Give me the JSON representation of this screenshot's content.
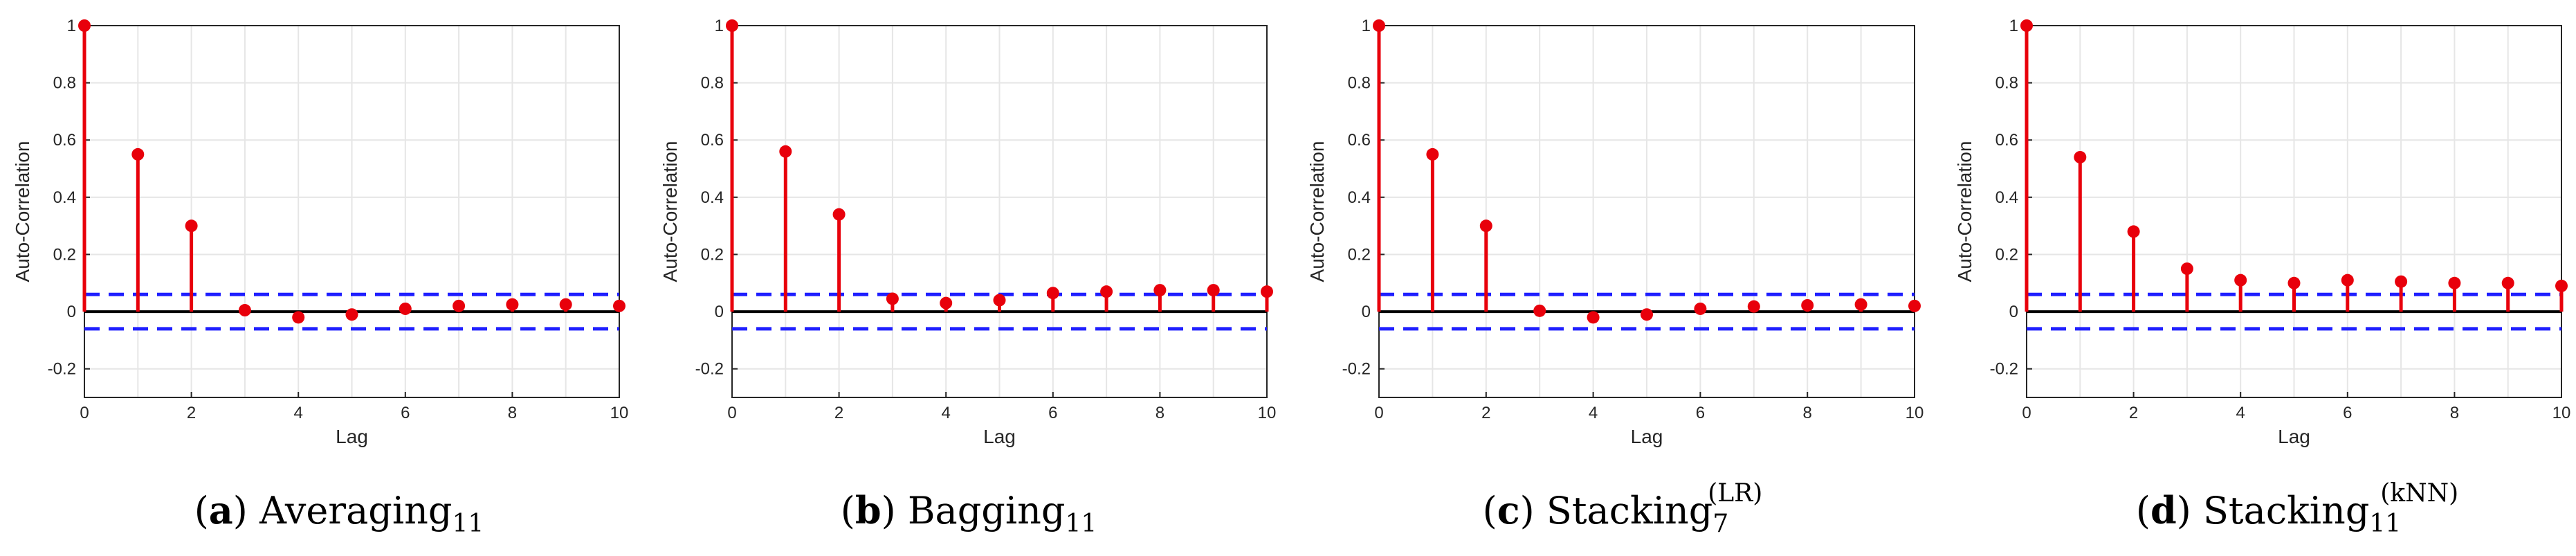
{
  "colors": {
    "stem": "#e8000b",
    "bound": "#1f1fff",
    "zeroline": "#000000",
    "grid": "#e6e6e6",
    "axis": "#262626"
  },
  "chart_data": [
    {
      "type": "stem",
      "title": "",
      "xlabel": "Lag",
      "ylabel": "Auto-Correlation",
      "xlim": [
        0,
        10
      ],
      "ylim": [
        -0.3,
        1
      ],
      "xticks": [
        "0",
        "2",
        "4",
        "6",
        "8",
        "10"
      ],
      "yticks": [
        "-0.2",
        "0",
        "0.2",
        "0.4",
        "0.6",
        "0.8",
        "1"
      ],
      "grid": true,
      "confidence_bounds": [
        0.06,
        -0.06
      ],
      "x": [
        0,
        1,
        2,
        3,
        4,
        5,
        6,
        7,
        8,
        9,
        10
      ],
      "values": [
        1.0,
        0.55,
        0.3,
        0.005,
        -0.02,
        -0.01,
        0.01,
        0.02,
        0.025,
        0.025,
        0.02
      ],
      "caption": {
        "label": "a",
        "name": "Averaging",
        "sub": "11",
        "sup": ""
      }
    },
    {
      "type": "stem",
      "title": "",
      "xlabel": "Lag",
      "ylabel": "Auto-Correlation",
      "xlim": [
        0,
        10
      ],
      "ylim": [
        -0.3,
        1
      ],
      "xticks": [
        "0",
        "2",
        "4",
        "6",
        "8",
        "10"
      ],
      "yticks": [
        "-0.2",
        "0",
        "0.2",
        "0.4",
        "0.6",
        "0.8",
        "1"
      ],
      "grid": true,
      "confidence_bounds": [
        0.06,
        -0.06
      ],
      "x": [
        0,
        1,
        2,
        3,
        4,
        5,
        6,
        7,
        8,
        9,
        10
      ],
      "values": [
        1.0,
        0.56,
        0.34,
        0.045,
        0.03,
        0.04,
        0.065,
        0.07,
        0.075,
        0.075,
        0.07
      ],
      "caption": {
        "label": "b",
        "name": "Bagging",
        "sub": "11",
        "sup": ""
      }
    },
    {
      "type": "stem",
      "title": "",
      "xlabel": "Lag",
      "ylabel": "Auto-Correlation",
      "xlim": [
        0,
        10
      ],
      "ylim": [
        -0.3,
        1
      ],
      "xticks": [
        "0",
        "2",
        "4",
        "6",
        "8",
        "10"
      ],
      "yticks": [
        "-0.2",
        "0",
        "0.2",
        "0.4",
        "0.6",
        "0.8",
        "1"
      ],
      "grid": true,
      "confidence_bounds": [
        0.06,
        -0.06
      ],
      "x": [
        0,
        1,
        2,
        3,
        4,
        5,
        6,
        7,
        8,
        9,
        10
      ],
      "values": [
        1.0,
        0.55,
        0.3,
        0.003,
        -0.02,
        -0.01,
        0.01,
        0.018,
        0.022,
        0.025,
        0.02
      ],
      "caption": {
        "label": "c",
        "name": "Stacking",
        "sub": "7",
        "sup": "(LR)"
      }
    },
    {
      "type": "stem",
      "title": "",
      "xlabel": "Lag",
      "ylabel": "Auto-Correlation",
      "xlim": [
        0,
        10
      ],
      "ylim": [
        -0.3,
        1
      ],
      "xticks": [
        "0",
        "2",
        "4",
        "6",
        "8",
        "10"
      ],
      "yticks": [
        "-0.2",
        "0",
        "0.2",
        "0.4",
        "0.6",
        "0.8",
        "1"
      ],
      "grid": true,
      "confidence_bounds": [
        0.06,
        -0.06
      ],
      "x": [
        0,
        1,
        2,
        3,
        4,
        5,
        6,
        7,
        8,
        9,
        10
      ],
      "values": [
        1.0,
        0.54,
        0.28,
        0.15,
        0.11,
        0.1,
        0.11,
        0.105,
        0.1,
        0.1,
        0.09
      ],
      "caption": {
        "label": "d",
        "name": "Stacking",
        "sub": "11",
        "sup": "(kNN)"
      }
    }
  ]
}
